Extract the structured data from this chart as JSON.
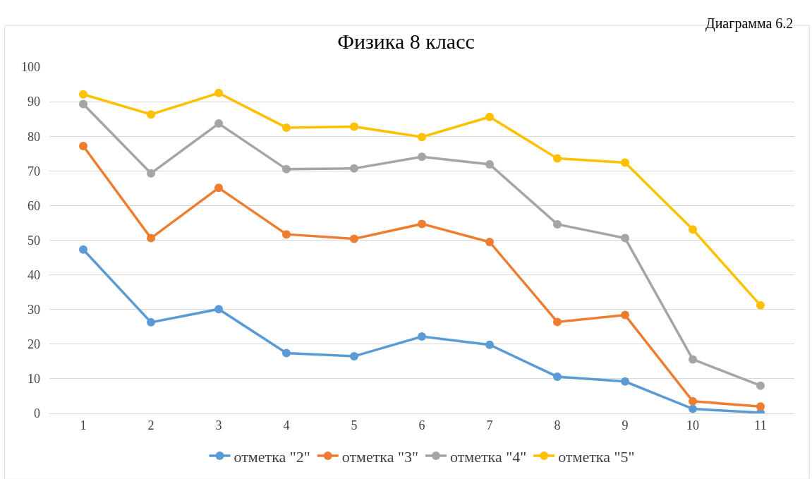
{
  "chart_data": {
    "type": "line",
    "title": "Физика 8 класс",
    "annotations": [
      "Диаграмма 6.2"
    ],
    "categories": [
      "1",
      "2",
      "3",
      "4",
      "5",
      "6",
      "7",
      "8",
      "9",
      "10",
      "11"
    ],
    "series": [
      {
        "name": "отметка \"2\"",
        "color": "#5b9bd5",
        "values": [
          47.3,
          26.3,
          30.1,
          17.4,
          16.5,
          22.2,
          19.8,
          10.6,
          9.2,
          1.3,
          0.2
        ]
      },
      {
        "name": "отметка \"3\"",
        "color": "#ed7d31",
        "values": [
          77.2,
          50.6,
          65.1,
          51.7,
          50.4,
          54.7,
          49.5,
          26.4,
          28.4,
          3.5,
          2
        ]
      },
      {
        "name": "отметка \"4\"",
        "color": "#a5a5a5",
        "values": [
          89.3,
          69.3,
          83.7,
          70.5,
          70.7,
          74.1,
          71.9,
          54.6,
          50.6,
          15.6,
          8
        ]
      },
      {
        "name": "отметка \"5\"",
        "color": "#ffc000",
        "values": [
          92.1,
          86.3,
          92.5,
          82.5,
          82.8,
          79.8,
          85.6,
          73.6,
          72.4,
          53.1,
          31.2
        ]
      }
    ],
    "ylim": [
      0,
      100
    ],
    "yticks": [
      0,
      10,
      20,
      30,
      40,
      50,
      60,
      70,
      80,
      90,
      100
    ],
    "grid": "y",
    "legend": "bottom",
    "marker": "circle",
    "line_style": "solid"
  }
}
